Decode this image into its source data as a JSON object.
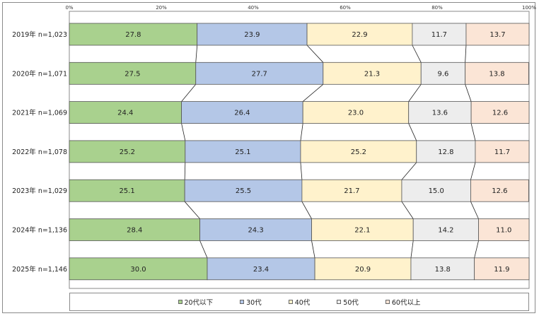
{
  "chart_data": {
    "type": "bar",
    "orientation": "horizontal",
    "stacked": "100%",
    "categories": [
      "2019年 n=1,023",
      "2020年 n=1,071",
      "2021年 n=1,069",
      "2022年 n=1,078",
      "2023年 n=1,029",
      "2024年 n=1,136",
      "2025年 n=1,146"
    ],
    "series": [
      {
        "name": "20代以下",
        "color": "#a9d18e",
        "values": [
          27.8,
          27.5,
          24.4,
          25.2,
          25.1,
          28.4,
          30.0
        ],
        "labels": [
          "27.8",
          "27.5",
          "24.4",
          "25.2",
          "25.1",
          "28.4",
          "30.0"
        ]
      },
      {
        "name": "30代",
        "color": "#b4c7e7",
        "values": [
          23.9,
          27.7,
          26.4,
          25.1,
          25.5,
          24.3,
          23.4
        ],
        "labels": [
          "23.9",
          "27.7",
          "26.4",
          "25.1",
          "25.5",
          "24.3",
          "23.4"
        ]
      },
      {
        "name": "40代",
        "color": "#fff2cc",
        "values": [
          22.9,
          21.3,
          23.0,
          25.2,
          21.7,
          22.1,
          20.9
        ],
        "labels": [
          "22.9",
          "21.3",
          "23.0",
          "25.2",
          "21.7",
          "22.1",
          "20.9"
        ]
      },
      {
        "name": "50代",
        "color": "#ededed",
        "values": [
          11.7,
          9.6,
          13.6,
          12.8,
          15.0,
          14.2,
          13.8
        ],
        "labels": [
          "11.7",
          "9.6",
          "13.6",
          "12.8",
          "15.0",
          "14.2",
          "13.8"
        ]
      },
      {
        "name": "60代以上",
        "color": "#fbe5d6",
        "values": [
          13.7,
          13.8,
          12.6,
          11.7,
          12.6,
          11.0,
          11.9
        ],
        "labels": [
          "13.7",
          "13.8",
          "12.6",
          "11.7",
          "12.6",
          "11.0",
          "11.9"
        ]
      }
    ],
    "xlim": [
      0,
      100
    ],
    "x_ticks": [
      "0%",
      "20%",
      "40%",
      "60%",
      "80%",
      "100%"
    ],
    "series_lines": true,
    "legend_position": "bottom",
    "title": "",
    "xlabel": "",
    "ylabel": ""
  }
}
